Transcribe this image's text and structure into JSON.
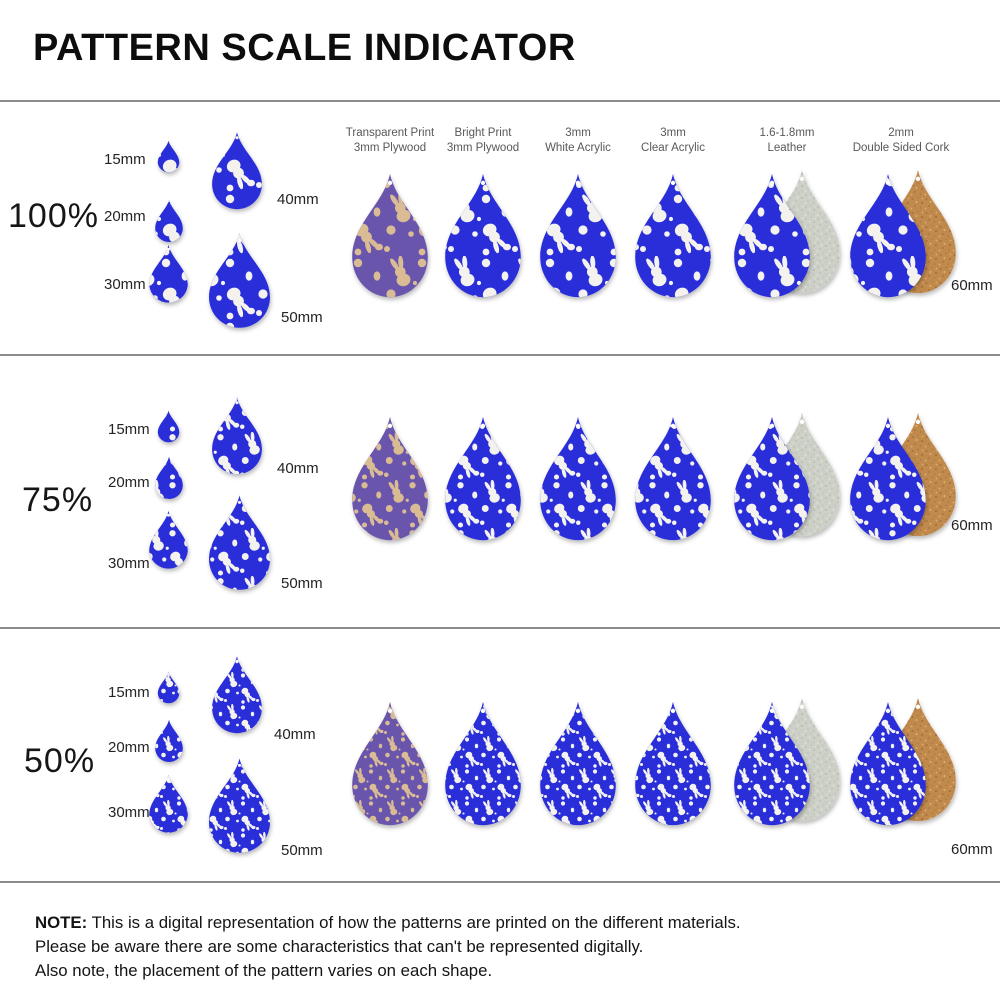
{
  "title": "PATTERN SCALE INDICATOR",
  "rows": [
    {
      "percent": "100%"
    },
    {
      "percent": "75%"
    },
    {
      "percent": "50%"
    }
  ],
  "size_labels": {
    "s15": "15mm",
    "s20": "20mm",
    "s30": "30mm",
    "s40": "40mm",
    "s50": "50mm",
    "s60": "60mm"
  },
  "materials": [
    {
      "line1": "Transparent Print",
      "line2": "3mm Plywood"
    },
    {
      "line1": "Bright Print",
      "line2": "3mm Plywood"
    },
    {
      "line1": "3mm",
      "line2": "White Acrylic"
    },
    {
      "line1": "3mm",
      "line2": "Clear Acrylic"
    },
    {
      "line1": "1.6-1.8mm",
      "line2": "Leather"
    },
    {
      "line1": "2mm",
      "line2": "Double Sided Cork"
    }
  ],
  "note": {
    "label": "NOTE:",
    "line1": "This is a digital representation of how the patterns are printed on the different materials.",
    "line2": "Please be aware there are some characteristics that can't be represented digitally.",
    "line3": "Also note, the placement of the pattern varies on each shape."
  },
  "colors": {
    "blue": "#2a2fd9",
    "motif": "#f4f2ee",
    "plywood": "#6b54ad",
    "tan": "#d9bc94",
    "leather": "#cdd0c7",
    "leather_speckle": "#b7bcb1",
    "leather_speckle_light": "#e9ece4",
    "cork": "#c18a4d",
    "cork_speckle": "#a5713a",
    "cork_speckle_light": "#ddb074",
    "separator": "#8c8c8c"
  }
}
